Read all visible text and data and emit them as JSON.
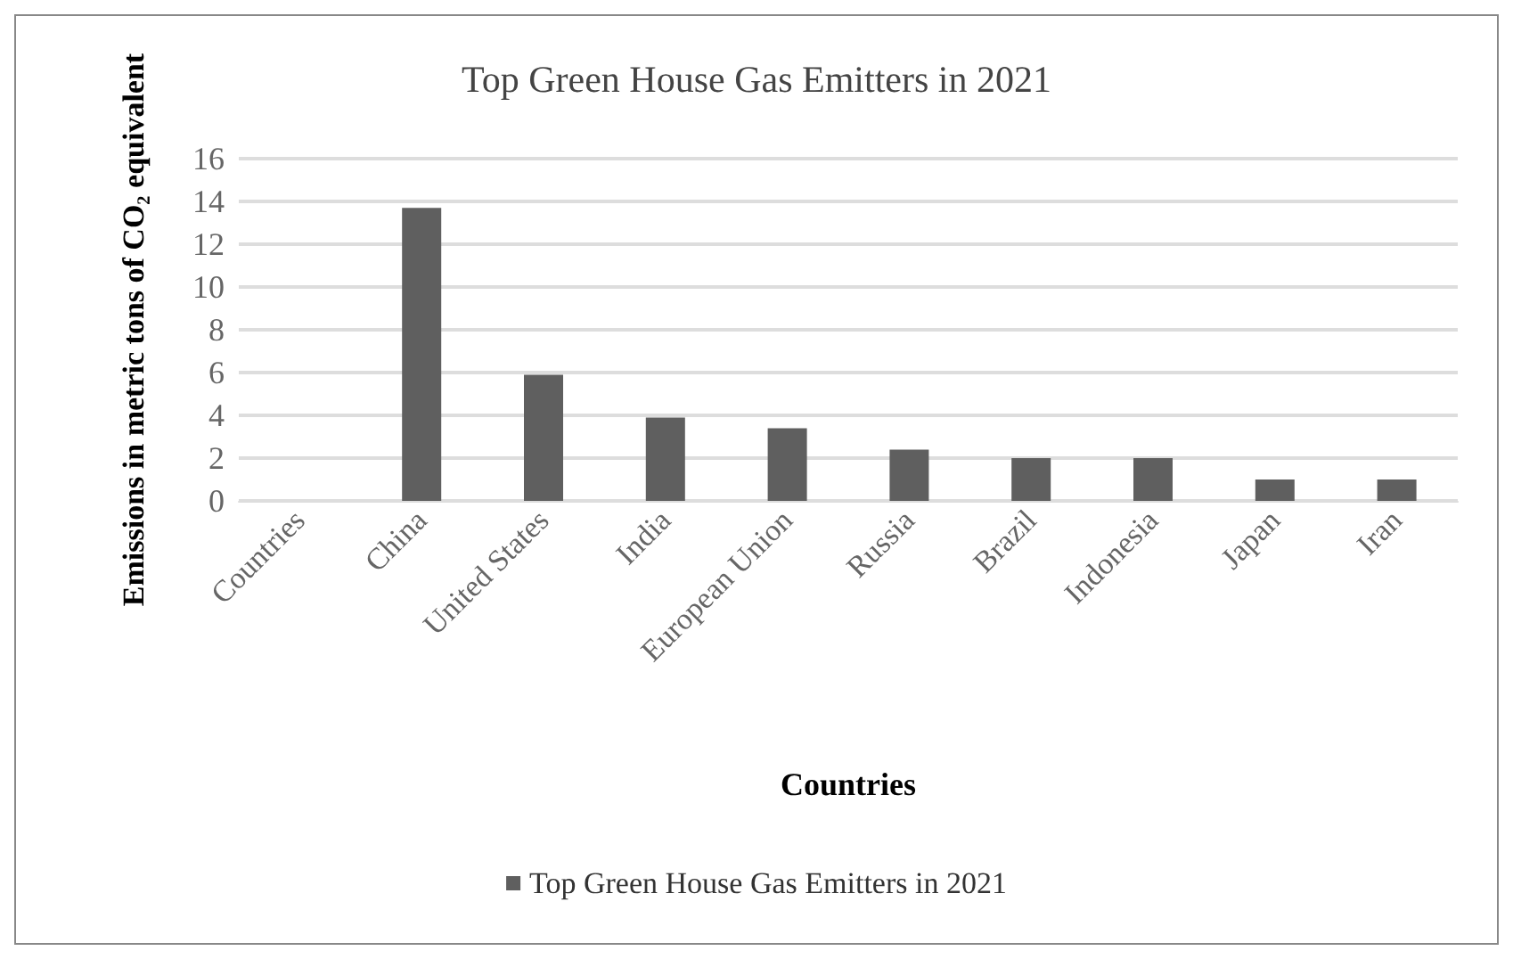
{
  "chart_data": {
    "type": "bar",
    "title": "Top Green House Gas Emitters in 2021",
    "xlabel": "Countries",
    "ylabel": "Emissions in metric tons of CO₂ equivalent",
    "categories": [
      "Countries",
      "China",
      "United States",
      "India",
      "European Union",
      "Russia",
      "Brazil",
      "Indonesia",
      "Japan",
      "Iran"
    ],
    "series": [
      {
        "name": "Top Green House Gas Emitters in 2021",
        "color": "#5f5f5f",
        "values": [
          null,
          13.7,
          5.9,
          3.9,
          3.4,
          2.4,
          2.0,
          2.0,
          1.0,
          1.0
        ]
      }
    ],
    "ylim": [
      0,
      16
    ],
    "yticks": [
      0,
      2,
      4,
      6,
      8,
      10,
      12,
      14,
      16
    ],
    "grid": "y",
    "legend": "bottom"
  }
}
